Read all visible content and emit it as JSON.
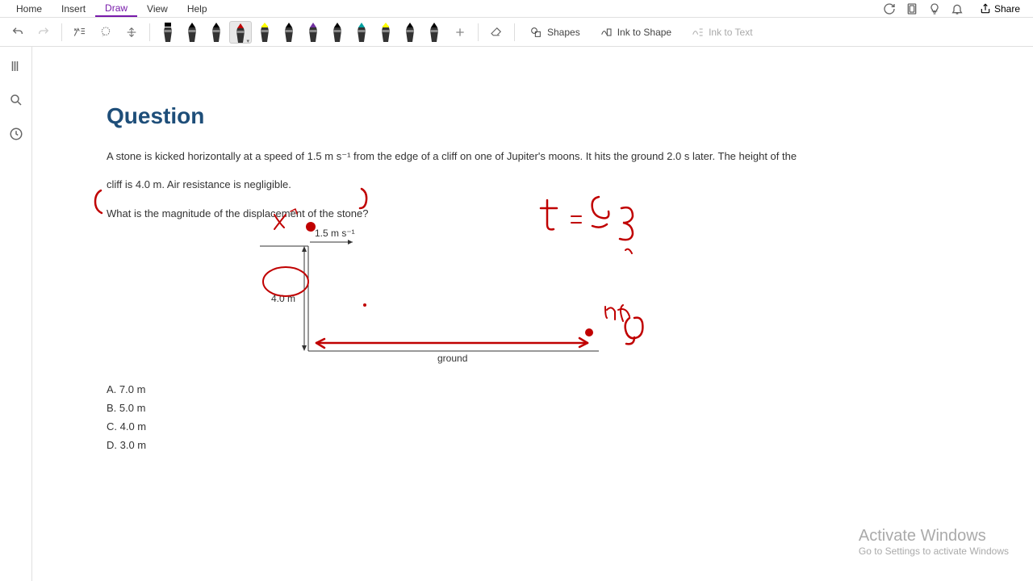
{
  "menu": {
    "items": [
      "Home",
      "Insert",
      "Draw",
      "View",
      "Help"
    ],
    "active_index": 2,
    "share": "Share"
  },
  "toolbar": {
    "pens": [
      {
        "tip": "#000000",
        "body": "#333333",
        "type": "marker"
      },
      {
        "tip": "#000000",
        "body": "#333333",
        "type": "pen"
      },
      {
        "tip": "#000000",
        "body": "#333333",
        "type": "pen"
      },
      {
        "tip": "#c00000",
        "body": "#333333",
        "type": "pen",
        "selected": true
      },
      {
        "tip": "#ffff00",
        "body": "#333333",
        "type": "highlighter"
      },
      {
        "tip": "#000000",
        "body": "#333333",
        "type": "pen"
      },
      {
        "tip": "#7030a0",
        "body": "#333333",
        "type": "pen"
      },
      {
        "tip": "#000000",
        "body": "#333333",
        "type": "pen"
      },
      {
        "tip": "#00a0a0",
        "body": "#333333",
        "type": "pen"
      },
      {
        "tip": "#ffff00",
        "body": "#333333",
        "type": "highlighter"
      },
      {
        "tip": "#000000",
        "body": "#333333",
        "type": "pen"
      },
      {
        "tip": "#000000",
        "body": "#333333",
        "type": "pen"
      }
    ],
    "shapes": "Shapes",
    "ink_to_shape": "Ink to Shape",
    "ink_to_text": "Ink to Text"
  },
  "content": {
    "heading": "Question",
    "body_1": "A stone is kicked horizontally at a speed of 1.5 m s⁻¹ from the edge of a cliff on one of Jupiter's moons. It hits the ground 2.0 s later. The height of the",
    "body_2": "cliff is 4.0 m. Air resistance is negligible.",
    "prompt": "What is the magnitude of the displacement of the stone?",
    "diagram": {
      "velocity_label": "1.5 m s⁻¹",
      "height_label": "4.0 m",
      "ground_label": "ground"
    },
    "options": [
      "A.  7.0 m",
      "B.  5.0 m",
      "C.  4.0 m",
      "D.  3.0 m"
    ]
  },
  "ink": {
    "color": "#c00000",
    "annotations": {
      "x_label": "x",
      "time_eq": "t = 2 s",
      "ng": "n g"
    }
  },
  "watermark": {
    "title": "Activate Windows",
    "sub": "Go to Settings to activate Windows"
  }
}
